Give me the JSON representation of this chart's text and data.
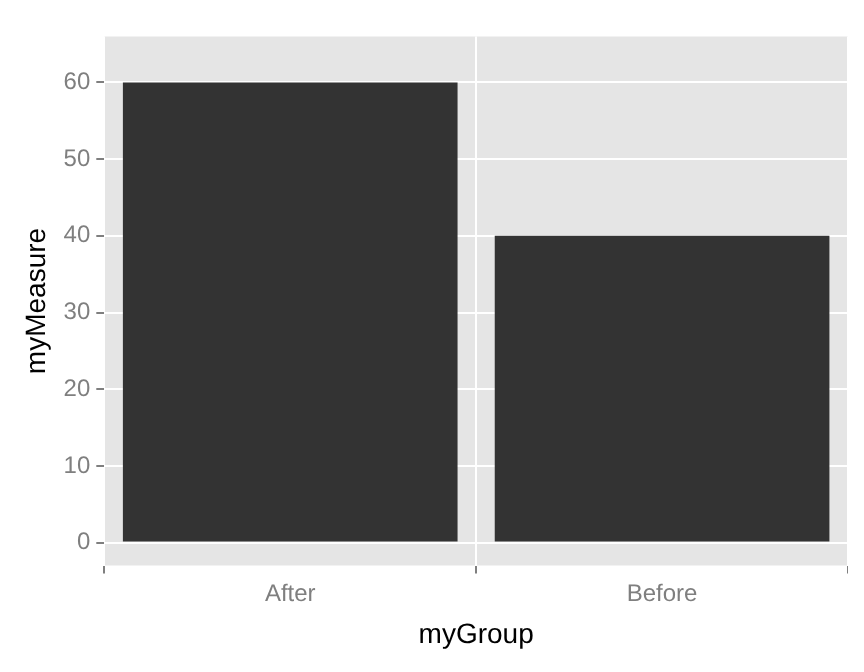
{
  "chart_data": {
    "type": "bar",
    "xlabel": "myGroup",
    "ylabel": "myMeasure",
    "categories": [
      "After",
      "Before"
    ],
    "values": [
      60,
      40
    ],
    "color": "#333333",
    "ylim": [
      -3,
      66
    ],
    "yticks": [
      0,
      10,
      20,
      30,
      40,
      50,
      60
    ],
    "grid": true
  }
}
